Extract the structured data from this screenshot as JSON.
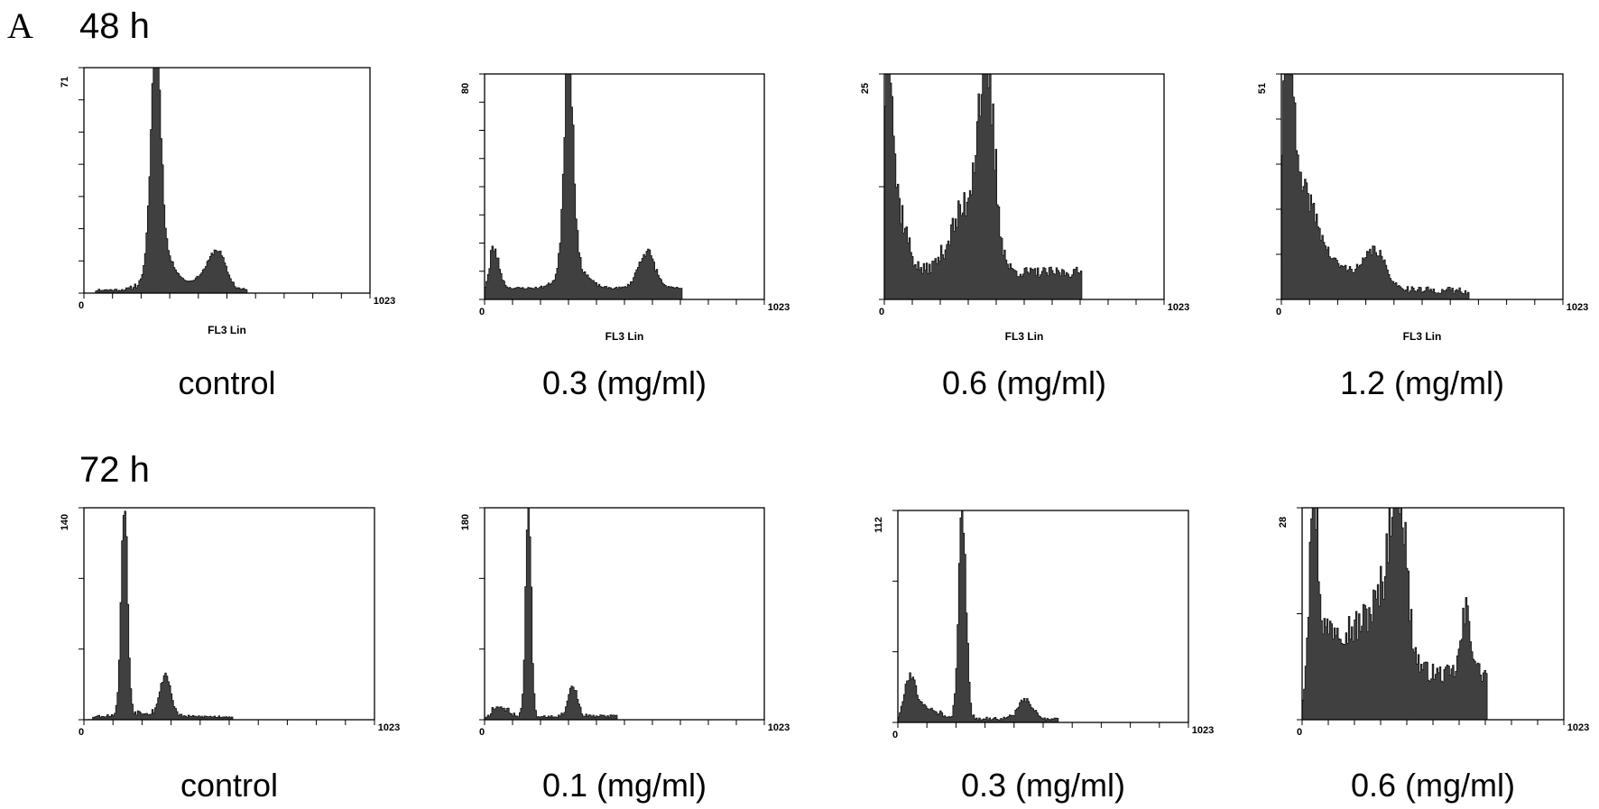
{
  "figure": {
    "panel_label": "A",
    "rows": [
      {
        "time_label": "48 h"
      },
      {
        "time_label": "72 h"
      }
    ]
  },
  "chart_data": [
    {
      "type": "area",
      "row": 0,
      "caption": "control",
      "xlabel": "FL3 Lin",
      "xlim": [
        0,
        1023
      ],
      "x_tick_labels": [
        "0",
        "1023"
      ],
      "y_max_label": "71",
      "ylim": [
        0,
        71
      ],
      "x_minor_ticks": 10,
      "y_minor_ticks": 7,
      "grid": false,
      "peaks": [
        {
          "center": 255,
          "width": 17,
          "height": 71
        },
        {
          "center": 275,
          "width": 45,
          "height": 12
        },
        {
          "center": 478,
          "width": 28,
          "height": 9
        },
        {
          "center": 440,
          "width": 45,
          "height": 5
        }
      ],
      "baseline": [
        {
          "from": 40,
          "to": 580,
          "level": 1
        }
      ],
      "noise": 0.06,
      "fill": "#404040",
      "seed": 11
    },
    {
      "type": "area",
      "row": 0,
      "caption": "0.3 (mg/ml)",
      "xlabel": "FL3 Lin",
      "xlim": [
        0,
        1023
      ],
      "x_tick_labels": [
        "0",
        "1023"
      ],
      "y_max_label": "80",
      "ylim": [
        0,
        80
      ],
      "x_minor_ticks": 10,
      "y_minor_ticks": 8,
      "grid": false,
      "peaks": [
        {
          "center": 305,
          "width": 16,
          "height": 80
        },
        {
          "center": 320,
          "width": 45,
          "height": 9
        },
        {
          "center": 590,
          "width": 30,
          "height": 13
        },
        {
          "center": 30,
          "width": 20,
          "height": 14
        }
      ],
      "baseline": [
        {
          "from": 20,
          "to": 720,
          "level": 4
        }
      ],
      "noise": 0.1,
      "fill": "#404040",
      "seed": 23
    },
    {
      "type": "area",
      "row": 0,
      "caption": "0.6 (mg/ml)",
      "xlabel": "FL3 Lin",
      "xlim": [
        0,
        1023
      ],
      "x_tick_labels": [
        "0",
        "1023"
      ],
      "y_max_label": "25",
      "ylim": [
        0,
        25
      ],
      "x_minor_ticks": 10,
      "y_minor_ticks": 2,
      "grid": false,
      "peaks": [
        {
          "center": 12,
          "width": 14,
          "height": 24
        },
        {
          "center": 40,
          "width": 35,
          "height": 8
        },
        {
          "center": 370,
          "width": 30,
          "height": 20
        },
        {
          "center": 300,
          "width": 60,
          "height": 7
        }
      ],
      "baseline": [
        {
          "from": 0,
          "to": 720,
          "level": 3
        }
      ],
      "noise": 0.2,
      "fill": "#404040",
      "seed": 37
    },
    {
      "type": "area",
      "row": 0,
      "caption": "1.2 (mg/ml)",
      "xlabel": "FL3 Lin",
      "xlim": [
        0,
        1023
      ],
      "x_tick_labels": [
        "0",
        "1023"
      ],
      "y_max_label": "51",
      "ylim": [
        0,
        51
      ],
      "x_minor_ticks": 10,
      "y_minor_ticks": 5,
      "grid": false,
      "peaks": [
        {
          "center": 22,
          "width": 18,
          "height": 48
        },
        {
          "center": 70,
          "width": 55,
          "height": 20
        },
        {
          "center": 340,
          "width": 35,
          "height": 7
        },
        {
          "center": 200,
          "width": 110,
          "height": 5
        }
      ],
      "baseline": [
        {
          "from": 0,
          "to": 680,
          "level": 2
        }
      ],
      "noise": 0.12,
      "fill": "#404040",
      "seed": 41
    },
    {
      "type": "area",
      "row": 1,
      "caption": "control",
      "xlabel": "",
      "xlim": [
        0,
        1023
      ],
      "x_tick_labels": [
        "0",
        "1023"
      ],
      "y_max_label": "140",
      "ylim": [
        0,
        140
      ],
      "x_minor_ticks": 10,
      "y_minor_ticks": 3,
      "grid": false,
      "peaks": [
        {
          "center": 140,
          "width": 11,
          "height": 140
        },
        {
          "center": 285,
          "width": 18,
          "height": 27
        },
        {
          "center": 200,
          "width": 70,
          "height": 3
        }
      ],
      "baseline": [
        {
          "from": 30,
          "to": 520,
          "level": 2
        }
      ],
      "noise": 0.08,
      "fill": "#404040",
      "seed": 53
    },
    {
      "type": "area",
      "row": 1,
      "caption": "0.1 (mg/ml)",
      "xlabel": "",
      "xlim": [
        0,
        1023
      ],
      "x_tick_labels": [
        "0",
        "1023"
      ],
      "y_max_label": "180",
      "ylim": [
        0,
        180
      ],
      "x_minor_ticks": 10,
      "y_minor_ticks": 3,
      "grid": false,
      "peaks": [
        {
          "center": 158,
          "width": 10,
          "height": 180
        },
        {
          "center": 320,
          "width": 17,
          "height": 26
        },
        {
          "center": 50,
          "width": 30,
          "height": 8
        }
      ],
      "baseline": [
        {
          "from": 20,
          "to": 480,
          "level": 3
        }
      ],
      "noise": 0.1,
      "fill": "#404040",
      "seed": 67
    },
    {
      "type": "area",
      "row": 1,
      "caption": "0.3 (mg/ml)",
      "xlabel": "",
      "xlim": [
        0,
        1023
      ],
      "x_tick_labels": [
        "0",
        "1023"
      ],
      "y_max_label": "112",
      "ylim": [
        0,
        112
      ],
      "x_minor_ticks": 10,
      "y_minor_ticks": 3,
      "grid": false,
      "peaks": [
        {
          "center": 225,
          "width": 13,
          "height": 112
        },
        {
          "center": 445,
          "width": 25,
          "height": 10
        },
        {
          "center": 40,
          "width": 20,
          "height": 20
        },
        {
          "center": 90,
          "width": 45,
          "height": 6
        }
      ],
      "baseline": [
        {
          "from": 20,
          "to": 560,
          "level": 2
        }
      ],
      "noise": 0.1,
      "fill": "#404040",
      "seed": 79
    },
    {
      "type": "area",
      "row": 1,
      "caption": "0.6 (mg/ml)",
      "xlabel": "",
      "xlim": [
        0,
        1023
      ],
      "x_tick_labels": [
        "0",
        "1023"
      ],
      "y_max_label": "28",
      "ylim": [
        0,
        28
      ],
      "x_minor_ticks": 10,
      "y_minor_ticks": 2,
      "grid": false,
      "peaks": [
        {
          "center": 40,
          "width": 18,
          "height": 24
        },
        {
          "center": 370,
          "width": 30,
          "height": 23
        },
        {
          "center": 300,
          "width": 75,
          "height": 9
        },
        {
          "center": 640,
          "width": 20,
          "height": 8
        },
        {
          "center": 120,
          "width": 60,
          "height": 6
        }
      ],
      "baseline": [
        {
          "from": 25,
          "to": 720,
          "level": 6
        }
      ],
      "noise": 0.2,
      "fill": "#404040",
      "seed": 97
    }
  ]
}
